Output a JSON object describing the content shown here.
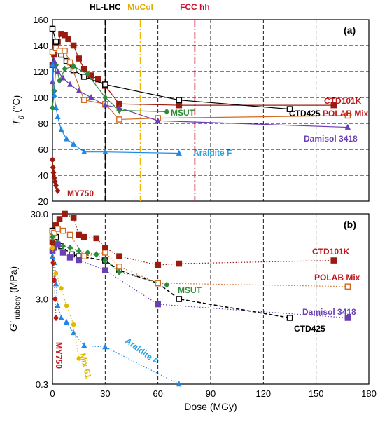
{
  "chart_data": [
    {
      "panel": "(a)",
      "type": "line",
      "ylabel_main": "T",
      "ylabel_sub": "g",
      "ylabel_unit": "(°C)",
      "xlim": [
        0,
        180
      ],
      "ylim": [
        20,
        160
      ],
      "yticks": [
        "20",
        "40",
        "60",
        "80",
        "100",
        "120",
        "140",
        "160"
      ],
      "vlines": [
        {
          "label": "HL-LHC",
          "x": 30,
          "color": "#000000",
          "style": "dash"
        },
        {
          "label": "MuCol",
          "x": 50,
          "color": "#F2B705",
          "style": "dashdot"
        },
        {
          "label": "FCC hh",
          "x": 81,
          "color": "#C8102E",
          "style": "dashdot"
        }
      ],
      "series": [
        {
          "name": "CTD101K",
          "color": "#9B1B10",
          "marker": "square",
          "line": "solid",
          "labelColor": "#C0171B",
          "x": [
            0,
            1,
            2,
            3,
            5,
            7,
            9,
            12,
            15,
            18,
            22,
            26,
            30,
            38,
            72,
            160
          ],
          "y": [
            125,
            133,
            140,
            143,
            149,
            148,
            145,
            140,
            130,
            122,
            117,
            114,
            109,
            95,
            94,
            94
          ]
        },
        {
          "name": "CTD425",
          "color": "#000000",
          "marker": "square-open",
          "line": "solid",
          "labelColor": "#000000",
          "x": [
            0,
            2,
            5,
            8,
            12,
            18,
            30,
            72,
            135
          ],
          "y": [
            153,
            143,
            133,
            128,
            121,
            116,
            110,
            98,
            91
          ]
        },
        {
          "name": "POLAB Mix",
          "color": "#D2691E",
          "marker": "square-open",
          "line": "solid",
          "labelColor": "#C0171B",
          "x": [
            0,
            2,
            4,
            7,
            10,
            18,
            30,
            38,
            60,
            168
          ],
          "y": [
            135,
            138,
            136,
            136,
            127,
            98,
            95,
            83,
            84,
            86
          ]
        },
        {
          "name": "MSUT",
          "color": "#2E8B3A",
          "marker": "diamond",
          "line": "solid",
          "labelColor": "#2E8B3A",
          "x": [
            0,
            1,
            2,
            4,
            7,
            12,
            20,
            30,
            38,
            65
          ],
          "y": [
            92,
            105,
            125,
            113,
            122,
            124,
            118,
            100,
            90,
            89
          ]
        },
        {
          "name": "Damisol 3418",
          "color": "#6A3FB5",
          "marker": "triangle",
          "line": "solid",
          "labelColor": "#6A3FB5",
          "x": [
            0,
            1,
            3,
            6,
            10,
            15,
            22,
            30,
            38,
            60,
            168
          ],
          "y": [
            112,
            128,
            120,
            115,
            110,
            105,
            100,
            94,
            92,
            82,
            77
          ]
        },
        {
          "name": "Araldite F",
          "color": "#1E88E5",
          "marker": "triangle",
          "line": "solid",
          "labelColor": "#29A3E0",
          "x": [
            0,
            1,
            2,
            3,
            5,
            8,
            12,
            18,
            30,
            72
          ],
          "y": [
            125,
            102,
            92,
            85,
            75,
            68,
            64,
            58,
            58,
            57
          ]
        },
        {
          "name": "MY750",
          "color": "#9B1B10",
          "marker": "diamond",
          "line": "solid",
          "labelColor": "#C0171B",
          "x": [
            0,
            0.3,
            0.6,
            1,
            1.5,
            2,
            3
          ],
          "y": [
            52,
            46,
            42,
            38,
            35,
            32,
            28
          ]
        }
      ]
    },
    {
      "panel": "(b)",
      "type": "line",
      "yscale": "log",
      "ylabel_main": "G'",
      "ylabel_sub": "rubbery",
      "ylabel_unit": "(MPa)",
      "xlabel": "Dose (MGy)",
      "xlim": [
        0,
        180
      ],
      "ylim": [
        0.3,
        30
      ],
      "xticks": [
        "0",
        "30",
        "60",
        "90",
        "120",
        "150",
        "180"
      ],
      "yticks": [
        "0.3",
        "3.0",
        "30.0"
      ],
      "series": [
        {
          "name": "CTD101K",
          "color": "#9B1B10",
          "marker": "square",
          "line": "dotted",
          "labelColor": "#C0171B",
          "x": [
            0,
            1,
            2,
            4,
            7,
            12,
            15,
            18,
            25,
            30,
            38,
            60,
            72,
            160
          ],
          "y": [
            14,
            18,
            22,
            26,
            30,
            27,
            17,
            16,
            15.5,
            12,
            9.5,
            7.5,
            7.8,
            8.5
          ]
        },
        {
          "name": "CTD425",
          "color": "#000000",
          "marker": "square-open",
          "line": "dashed",
          "labelColor": "#000000",
          "x": [
            0,
            2,
            5,
            11,
            15,
            30,
            38,
            60,
            72,
            135
          ],
          "y": [
            19,
            16,
            12.5,
            10,
            9.5,
            8.5,
            6.5,
            4.6,
            3.0,
            1.8
          ]
        },
        {
          "name": "POLAB Mix",
          "color": "#D2691E",
          "marker": "square-open",
          "line": "dotted",
          "labelColor": "#C0171B",
          "x": [
            0,
            1,
            3,
            6,
            10,
            18,
            30,
            38,
            60,
            168
          ],
          "y": [
            16,
            18,
            20,
            19,
            17,
            9.5,
            10.5,
            7.2,
            4.6,
            4.2
          ]
        },
        {
          "name": "MSUT",
          "color": "#2E8B3A",
          "marker": "diamond",
          "line": "dotted",
          "labelColor": "#2E8B3A",
          "x": [
            0,
            1,
            3,
            6,
            10,
            15,
            20,
            25,
            30,
            38,
            65
          ],
          "y": [
            16,
            12,
            14,
            12.5,
            12,
            11,
            10.5,
            10,
            8.5,
            6.2,
            4.4
          ]
        },
        {
          "name": "Damisol 3418",
          "color": "#6A3FB5",
          "marker": "square",
          "line": "dotted",
          "labelColor": "#6A3FB5",
          "x": [
            0,
            1,
            3,
            6,
            10,
            15,
            30,
            60,
            168
          ],
          "y": [
            11,
            12,
            13,
            10.5,
            9.2,
            8.6,
            6.5,
            2.6,
            1.8
          ]
        },
        {
          "name": "Araldite F",
          "color": "#1E88E5",
          "marker": "triangle",
          "line": "dotted",
          "labelColor": "#29A3E0",
          "x": [
            0,
            1,
            2,
            3,
            5,
            8,
            12,
            18,
            30,
            72
          ],
          "y": [
            9.5,
            8,
            4.5,
            2.5,
            1.8,
            1.6,
            1.2,
            0.85,
            0.82,
            0.3
          ]
        },
        {
          "name": "MY750",
          "color": "#C0171B",
          "marker": "diamond",
          "line": "dotted",
          "labelColor": "#C0171B",
          "x": [
            0,
            0.5,
            1,
            1.5,
            2
          ],
          "y": [
            12,
            8,
            5,
            3,
            1.8
          ]
        },
        {
          "name": "Mix 61",
          "color": "#E0B800",
          "marker": "circle",
          "line": "dotted",
          "labelColor": "#E0B800",
          "x": [
            0,
            2,
            5,
            8,
            12,
            15
          ],
          "y": [
            12,
            6,
            4,
            2.5,
            1.5,
            0.6
          ]
        }
      ]
    }
  ]
}
